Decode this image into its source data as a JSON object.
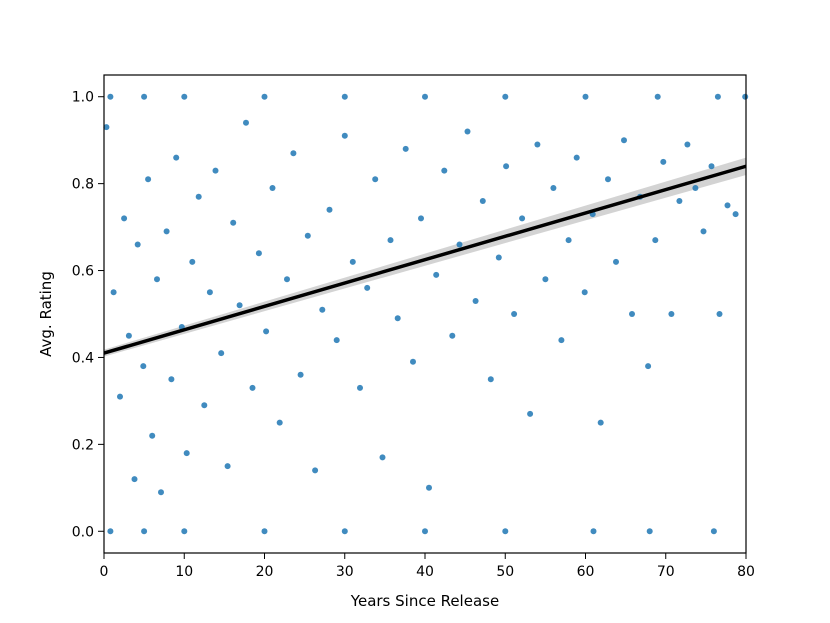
{
  "chart_data": {
    "type": "scatter",
    "title": "",
    "xlabel": "Years Since Release",
    "ylabel": "Avg. Rating",
    "xlim": [
      0,
      80
    ],
    "ylim": [
      -0.05,
      1.05
    ],
    "x_ticks": [
      0,
      10,
      20,
      30,
      40,
      50,
      60,
      70,
      80
    ],
    "y_ticks": [
      0.0,
      0.2,
      0.4,
      0.6,
      0.8,
      1.0
    ],
    "x_tick_labels": [
      "0",
      "10",
      "20",
      "30",
      "40",
      "50",
      "60",
      "70",
      "80"
    ],
    "y_tick_labels": [
      "0.0",
      "0.2",
      "0.4",
      "0.6",
      "0.8",
      "1.0"
    ],
    "grid": false,
    "legend": "none",
    "series": [
      {
        "marker_color": "#1f77b4",
        "points": [
          [
            0.3,
            0.93
          ],
          [
            1.2,
            0.55
          ],
          [
            2.0,
            0.31
          ],
          [
            2.5,
            0.72
          ],
          [
            3.1,
            0.45
          ],
          [
            3.8,
            0.12
          ],
          [
            4.2,
            0.66
          ],
          [
            4.9,
            0.38
          ],
          [
            5.5,
            0.81
          ],
          [
            6.0,
            0.22
          ],
          [
            6.6,
            0.58
          ],
          [
            7.1,
            0.09
          ],
          [
            7.8,
            0.69
          ],
          [
            8.4,
            0.35
          ],
          [
            9.0,
            0.86
          ],
          [
            9.7,
            0.47
          ],
          [
            10.3,
            0.18
          ],
          [
            11.0,
            0.62
          ],
          [
            11.8,
            0.77
          ],
          [
            12.5,
            0.29
          ],
          [
            13.2,
            0.55
          ],
          [
            13.9,
            0.83
          ],
          [
            14.6,
            0.41
          ],
          [
            15.4,
            0.15
          ],
          [
            16.1,
            0.71
          ],
          [
            16.9,
            0.52
          ],
          [
            17.7,
            0.94
          ],
          [
            18.5,
            0.33
          ],
          [
            19.3,
            0.64
          ],
          [
            20.2,
            0.46
          ],
          [
            21.0,
            0.79
          ],
          [
            21.9,
            0.25
          ],
          [
            22.8,
            0.58
          ],
          [
            23.6,
            0.87
          ],
          [
            24.5,
            0.36
          ],
          [
            25.4,
            0.68
          ],
          [
            26.3,
            0.14
          ],
          [
            27.2,
            0.51
          ],
          [
            28.1,
            0.74
          ],
          [
            29.0,
            0.44
          ],
          [
            30.0,
            0.91
          ],
          [
            31.0,
            0.62
          ],
          [
            31.9,
            0.33
          ],
          [
            32.8,
            0.56
          ],
          [
            33.8,
            0.81
          ],
          [
            34.7,
            0.17
          ],
          [
            35.7,
            0.67
          ],
          [
            36.6,
            0.49
          ],
          [
            37.6,
            0.88
          ],
          [
            38.5,
            0.39
          ],
          [
            39.5,
            0.72
          ],
          [
            40.5,
            0.1
          ],
          [
            41.4,
            0.59
          ],
          [
            42.4,
            0.83
          ],
          [
            43.4,
            0.45
          ],
          [
            44.3,
            0.66
          ],
          [
            45.3,
            0.92
          ],
          [
            46.3,
            0.53
          ],
          [
            47.2,
            0.76
          ],
          [
            48.2,
            0.35
          ],
          [
            49.2,
            0.63
          ],
          [
            50.1,
            0.84
          ],
          [
            51.1,
            0.5
          ],
          [
            52.1,
            0.72
          ],
          [
            53.1,
            0.27
          ],
          [
            54.0,
            0.89
          ],
          [
            55.0,
            0.58
          ],
          [
            56.0,
            0.79
          ],
          [
            57.0,
            0.44
          ],
          [
            57.9,
            0.67
          ],
          [
            58.9,
            0.86
          ],
          [
            59.9,
            0.55
          ],
          [
            60.9,
            0.73
          ],
          [
            61.9,
            0.25
          ],
          [
            62.8,
            0.81
          ],
          [
            63.8,
            0.62
          ],
          [
            64.8,
            0.9
          ],
          [
            65.8,
            0.5
          ],
          [
            66.8,
            0.77
          ],
          [
            67.8,
            0.38
          ],
          [
            68.7,
            0.67
          ],
          [
            69.7,
            0.85
          ],
          [
            70.7,
            0.5
          ],
          [
            71.7,
            0.76
          ],
          [
            72.7,
            0.89
          ],
          [
            73.7,
            0.79
          ],
          [
            74.7,
            0.69
          ],
          [
            75.7,
            0.84
          ],
          [
            76.7,
            0.5
          ],
          [
            77.7,
            0.75
          ],
          [
            78.7,
            0.73
          ],
          [
            79.9,
            1.0
          ],
          [
            0.8,
            1.0
          ],
          [
            5.0,
            1.0
          ],
          [
            10.0,
            1.0
          ],
          [
            20.0,
            1.0
          ],
          [
            30.0,
            1.0
          ],
          [
            40.0,
            1.0
          ],
          [
            50.0,
            1.0
          ],
          [
            60.0,
            1.0
          ],
          [
            69.0,
            1.0
          ],
          [
            76.5,
            1.0
          ],
          [
            0.8,
            0.0
          ],
          [
            5.0,
            0.0
          ],
          [
            10.0,
            0.0
          ],
          [
            20.0,
            0.0
          ],
          [
            30.0,
            0.0
          ],
          [
            40.0,
            0.0
          ],
          [
            50.0,
            0.0
          ],
          [
            61.0,
            0.0
          ],
          [
            68.0,
            0.0
          ],
          [
            76.0,
            0.0
          ]
        ]
      }
    ],
    "regression": {
      "color": "#000000",
      "x": [
        0,
        80
      ],
      "y": [
        0.41,
        0.84
      ],
      "ci_color": "#c8c8c8"
    }
  }
}
